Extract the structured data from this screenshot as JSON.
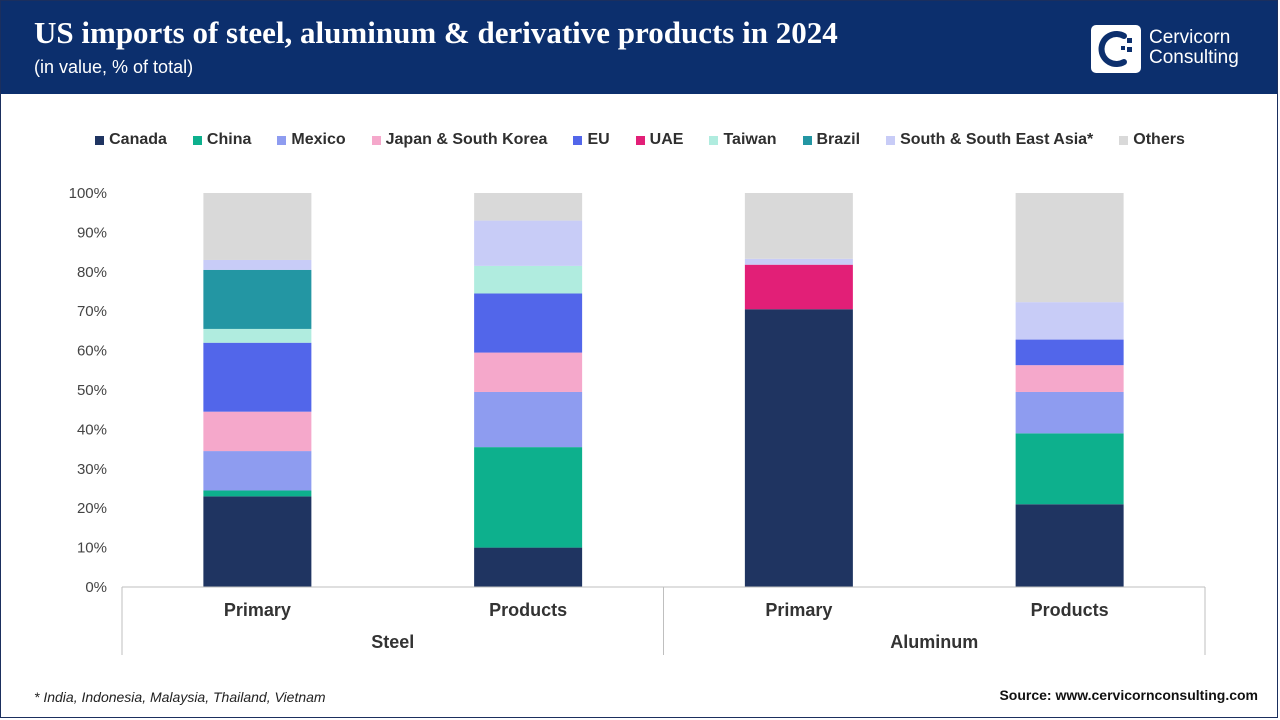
{
  "header": {
    "title": "US imports of steel, aluminum & derivative products in 2024",
    "subtitle": "(in value, % of total)"
  },
  "logo": {
    "line1": "Cervicorn",
    "line2": "Consulting"
  },
  "footer": {
    "footnote": "* India, Indonesia, Malaysia, Thailand, Vietnam",
    "source": "Source: www.cervicornconsulting.com"
  },
  "chart_data": {
    "type": "bar",
    "stacked": true,
    "title": "US imports of steel, aluminum & derivative products in 2024",
    "subtitle": "(in value, % of total)",
    "xlabel": "",
    "ylabel": "",
    "ylim": [
      0,
      100
    ],
    "y_ticks": [
      "0%",
      "10%",
      "20%",
      "30%",
      "40%",
      "50%",
      "60%",
      "70%",
      "80%",
      "90%",
      "100%"
    ],
    "categories": [
      "Primary",
      "Products",
      "Primary",
      "Products"
    ],
    "groups": [
      {
        "label": "Steel",
        "categories": [
          0,
          1
        ]
      },
      {
        "label": "Aluminum",
        "categories": [
          2,
          3
        ]
      }
    ],
    "legend_position": "top",
    "series": [
      {
        "name": "Canada",
        "color": "#1f3461",
        "values": [
          23.0,
          10.0,
          70.5,
          21.0
        ]
      },
      {
        "name": "China",
        "color": "#0db08d",
        "values": [
          1.5,
          25.5,
          0.0,
          18.0
        ]
      },
      {
        "name": "Mexico",
        "color": "#8e9cf0",
        "values": [
          10.0,
          14.0,
          0.0,
          10.5
        ]
      },
      {
        "name": "Japan & South Korea",
        "color": "#f5a8cb",
        "values": [
          10.0,
          10.0,
          0.0,
          6.8
        ]
      },
      {
        "name": "EU",
        "color": "#5266ea",
        "values": [
          17.5,
          15.0,
          0.0,
          6.5
        ]
      },
      {
        "name": "UAE",
        "color": "#e21f77",
        "values": [
          0.0,
          0.0,
          11.3,
          0.0
        ]
      },
      {
        "name": "Taiwan",
        "color": "#b0ecdf",
        "values": [
          3.5,
          7.0,
          0.0,
          0.0
        ]
      },
      {
        "name": "Brazil",
        "color": "#2396a3",
        "values": [
          15.0,
          0.0,
          0.0,
          0.0
        ]
      },
      {
        "name": "South & South East Asia*",
        "color": "#c8ccf7",
        "values": [
          2.5,
          11.5,
          1.5,
          9.5
        ]
      },
      {
        "name": "Others",
        "color": "#d9d9d9",
        "values": [
          17.0,
          7.0,
          16.7,
          27.7
        ]
      }
    ]
  }
}
